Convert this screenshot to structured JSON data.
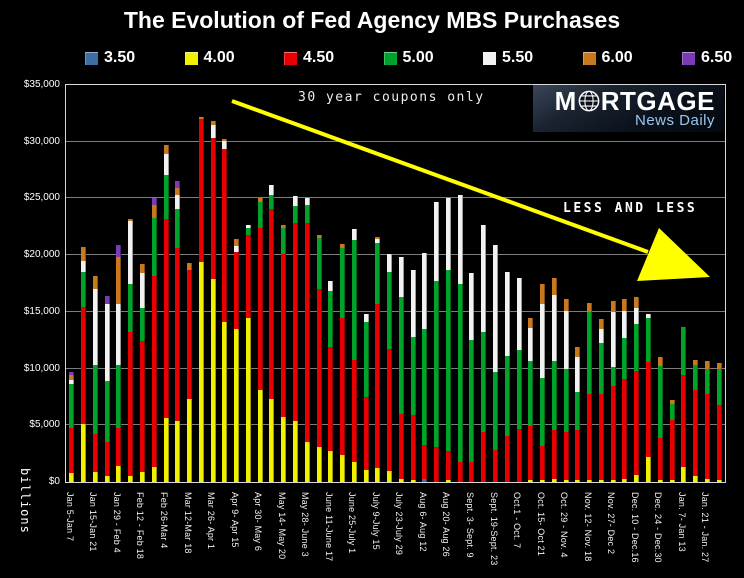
{
  "title": "The Evolution of Fed Agency MBS Purchases",
  "legend": [
    {
      "label": "3.50",
      "color": "#3a6ea5"
    },
    {
      "label": "4.00",
      "color": "#f2f200"
    },
    {
      "label": "4.50",
      "color": "#e80000"
    },
    {
      "label": "5.00",
      "color": "#00a42a"
    },
    {
      "label": "5.50",
      "color": "#f2f2f2"
    },
    {
      "label": "6.00",
      "color": "#c9781e"
    },
    {
      "label": "6.50",
      "color": "#7a3bb5"
    }
  ],
  "annotations": {
    "coupons_note": "30 year coupons only",
    "less_and_less": "LESS AND LESS",
    "arrow_color": "#ffff00"
  },
  "logo": {
    "brand_prefix": "M",
    "brand_suffix": "RTGAGE",
    "subtitle": "News Daily"
  },
  "y_axis": {
    "label": "billions",
    "ticks": [
      "$0",
      "$5,000",
      "$10,000",
      "$15,000",
      "$20,000",
      "$25,000",
      "$30,000",
      "$35,000"
    ],
    "max": 35000,
    "step": 5000
  },
  "chart_data": {
    "type": "bar",
    "stacked": true,
    "title": "The Evolution of Fed Agency MBS Purchases",
    "ylabel": "billions",
    "ylim": [
      0,
      35000
    ],
    "grid": true,
    "legend_position": "top",
    "series_names": [
      "3.50",
      "4.00",
      "4.50",
      "5.00",
      "5.50",
      "6.00",
      "6.50"
    ],
    "x_labels": [
      "Jan 5-Jan 7",
      "Jan 15-Jan 21",
      "Jan 29 - Feb 4",
      "Feb 12 - Feb 18",
      "Feb 26-Mar 4",
      "Mar 12-Mar 18",
      "Mar 26- Apr 1",
      "Apr 9- Apr 15",
      "Apr 30- May 6",
      "May 14- May 20",
      "May 28- June 3",
      "June 11-June 17",
      "June 25-July 1",
      "July 9-July 15",
      "July 23-July 29",
      "Aug 6- Aug 12",
      "Aug 20- Aug 26",
      "Sept. 3- Sept. 9",
      "Sept. 19-Sept. 23",
      "Oct.1 - Oct. 7",
      "Oct. 15- Oct 21",
      "Oct. 29 - Nov. 4",
      "Nov. 12- Nov. 18",
      "Nov. 27- Dec 2",
      "Dec. 10 - Dec.16",
      "Dec. 24 - Dec.30",
      "Jan. 7- Jan 13",
      "Jan. 21 - Jan. 27"
    ],
    "label_every": 2,
    "bars": [
      [
        0,
        800,
        4000,
        3800,
        400,
        400,
        300
      ],
      [
        0,
        5100,
        10300,
        3100,
        1000,
        1200,
        0
      ],
      [
        0,
        900,
        3300,
        6100,
        6700,
        1200,
        0
      ],
      [
        0,
        500,
        3000,
        5400,
        6800,
        0,
        700
      ],
      [
        0,
        1400,
        3400,
        5500,
        5400,
        4100,
        1100
      ],
      [
        0,
        500,
        12700,
        4300,
        5500,
        200,
        0
      ],
      [
        0,
        900,
        11500,
        2900,
        3100,
        800,
        0
      ],
      [
        0,
        1300,
        16900,
        5100,
        0,
        1100,
        600
      ],
      [
        0,
        5600,
        17600,
        3900,
        1800,
        800,
        0
      ],
      [
        0,
        5400,
        15200,
        3500,
        1200,
        600,
        600
      ],
      [
        0,
        7300,
        11400,
        0,
        0,
        600,
        0
      ],
      [
        0,
        19400,
        12600,
        0,
        0,
        200,
        0
      ],
      [
        0,
        17900,
        12400,
        0,
        1200,
        300,
        0
      ],
      [
        0,
        14100,
        15300,
        0,
        700,
        100,
        0
      ],
      [
        0,
        13500,
        6800,
        0,
        500,
        600,
        0
      ],
      [
        0,
        14500,
        7300,
        600,
        300,
        0,
        0
      ],
      [
        0,
        8100,
        14300,
        2300,
        0,
        300,
        0
      ],
      [
        0,
        7300,
        16800,
        1200,
        900,
        0,
        0
      ],
      [
        0,
        5700,
        14400,
        2300,
        0,
        300,
        0
      ],
      [
        0,
        5400,
        17400,
        1500,
        900,
        0,
        0
      ],
      [
        0,
        3500,
        19300,
        1600,
        600,
        0,
        0
      ],
      [
        0,
        3100,
        13900,
        4500,
        0,
        300,
        0
      ],
      [
        0,
        2700,
        9200,
        4900,
        900,
        0,
        0
      ],
      [
        0,
        2400,
        12100,
        6100,
        0,
        400,
        0
      ],
      [
        0,
        1800,
        9000,
        10500,
        1000,
        0,
        0
      ],
      [
        0,
        1100,
        6400,
        6600,
        700,
        0,
        0
      ],
      [
        0,
        1200,
        14500,
        5400,
        300,
        200,
        0
      ],
      [
        0,
        1000,
        10700,
        6800,
        1600,
        0,
        0
      ],
      [
        0,
        300,
        5700,
        10300,
        3500,
        0,
        0
      ],
      [
        0,
        200,
        5700,
        6900,
        5900,
        0,
        0
      ],
      [
        300,
        0,
        3000,
        10200,
        6700,
        0,
        0
      ],
      [
        0,
        0,
        3100,
        14600,
        7000,
        0,
        0
      ],
      [
        0,
        200,
        2500,
        16000,
        6300,
        0,
        0
      ],
      [
        0,
        0,
        1800,
        15700,
        7800,
        0,
        0
      ],
      [
        0,
        0,
        1800,
        10700,
        5900,
        0,
        0
      ],
      [
        0,
        0,
        4400,
        8800,
        9500,
        0,
        0
      ],
      [
        0,
        0,
        2800,
        6900,
        11200,
        0,
        0
      ],
      [
        0,
        0,
        4100,
        7000,
        7400,
        0,
        0
      ],
      [
        0,
        0,
        4700,
        6900,
        6400,
        0,
        0
      ],
      [
        0,
        200,
        4700,
        5800,
        2900,
        900,
        0
      ],
      [
        0,
        200,
        3000,
        6000,
        6500,
        1800,
        0
      ],
      [
        0,
        300,
        4300,
        6100,
        5800,
        1500,
        0
      ],
      [
        0,
        200,
        4200,
        5600,
        5100,
        1000,
        0
      ],
      [
        0,
        200,
        4400,
        3300,
        3100,
        900,
        0
      ],
      [
        0,
        200,
        7600,
        7200,
        0,
        800,
        0
      ],
      [
        0,
        200,
        7600,
        4500,
        1200,
        900,
        0
      ],
      [
        0,
        200,
        8300,
        1600,
        4900,
        1000,
        0
      ],
      [
        0,
        300,
        8800,
        3600,
        2400,
        1000,
        0
      ],
      [
        0,
        600,
        9200,
        4100,
        1400,
        1000,
        0
      ],
      [
        0,
        2200,
        8400,
        3900,
        300,
        0,
        0
      ],
      [
        0,
        200,
        3700,
        6300,
        0,
        800,
        0
      ],
      [
        0,
        200,
        5300,
        1400,
        0,
        300,
        0
      ],
      [
        0,
        1300,
        8100,
        4300,
        0,
        0,
        0
      ],
      [
        0,
        500,
        7600,
        2200,
        0,
        500,
        0
      ],
      [
        0,
        300,
        7500,
        2200,
        0,
        700,
        0
      ],
      [
        0,
        200,
        6600,
        3200,
        0,
        500,
        0
      ]
    ]
  }
}
